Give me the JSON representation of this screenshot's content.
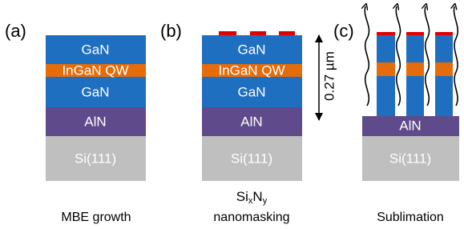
{
  "panels": [
    {
      "label": "(a)",
      "layers": [
        "GaN",
        "InGaN QW",
        "GaN",
        "AlN",
        "Si(111)"
      ],
      "caption": "MBE growth"
    },
    {
      "label": "(b)",
      "layers": [
        "GaN",
        "InGaN QW",
        "GaN",
        "AlN",
        "Si(111)"
      ],
      "thickness": "0.27 µm",
      "mask": [
        "Si",
        "x",
        "N",
        "y"
      ],
      "caption": "nanomasking"
    },
    {
      "label": "(c)",
      "layers": [
        "AlN",
        "Si(111)"
      ],
      "caption": "Sublimation"
    }
  ]
}
